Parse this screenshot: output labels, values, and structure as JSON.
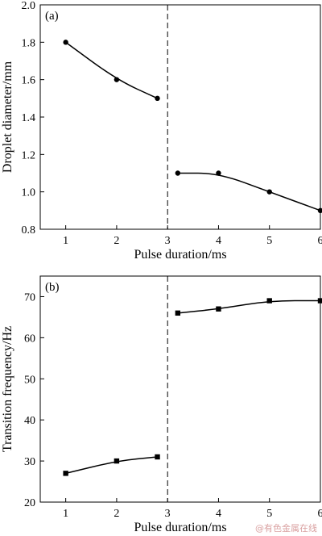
{
  "chart_data": [
    {
      "type": "line",
      "panel_label": "(a)",
      "xlabel": "Pulse duration/ms",
      "ylabel": "Droplet diameter/mm",
      "xlim": [
        0.5,
        6
      ],
      "ylim": [
        0.8,
        2.0
      ],
      "xticks": [
        1,
        2,
        3,
        4,
        5,
        6
      ],
      "yticks": [
        0.8,
        1.0,
        1.2,
        1.4,
        1.6,
        1.8,
        2.0
      ],
      "ytick_labels": [
        "0.8",
        "1.0",
        "1.2",
        "1.4",
        "1.6",
        "1.8",
        "2.0"
      ],
      "divider_x": 3,
      "marker": "circle",
      "series": [
        {
          "points": [
            [
              1,
              1.8
            ],
            [
              2,
              1.6
            ],
            [
              2.8,
              1.5
            ]
          ]
        },
        {
          "points": [
            [
              3.2,
              1.1
            ],
            [
              4,
              1.1
            ],
            [
              5,
              1.0
            ],
            [
              6,
              0.9
            ]
          ]
        }
      ]
    },
    {
      "type": "line",
      "panel_label": "(b)",
      "xlabel": "Pulse duration/ms",
      "ylabel": "Transition frequency/Hz",
      "xlim": [
        0.5,
        6
      ],
      "ylim": [
        20,
        75
      ],
      "xticks": [
        1,
        2,
        3,
        4,
        5,
        6
      ],
      "yticks": [
        20,
        30,
        40,
        50,
        60,
        70
      ],
      "ytick_labels": [
        "20",
        "30",
        "40",
        "50",
        "60",
        "70"
      ],
      "divider_x": 3,
      "marker": "square",
      "series": [
        {
          "points": [
            [
              1,
              27
            ],
            [
              2,
              30
            ],
            [
              2.8,
              31
            ]
          ]
        },
        {
          "points": [
            [
              3.2,
              66
            ],
            [
              4,
              67
            ],
            [
              5,
              69
            ],
            [
              6,
              69
            ]
          ]
        }
      ]
    }
  ],
  "watermark": "@有色金属在线"
}
